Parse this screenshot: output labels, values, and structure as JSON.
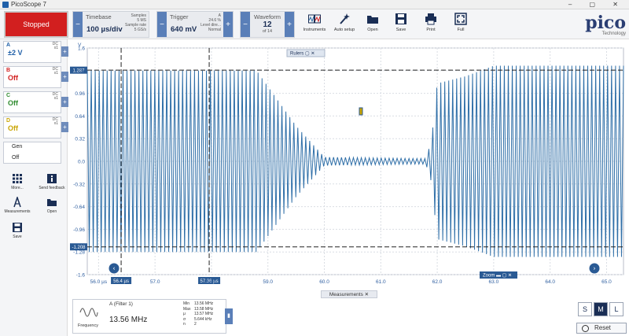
{
  "window": {
    "title": "PicoScope 7"
  },
  "toolbar": {
    "stop_label": "Stopped",
    "timebase": {
      "title": "Timebase",
      "value": "100 µs/div",
      "samples_label": "Samples",
      "samples_value": "5 MS",
      "rate_label": "Sample rate",
      "rate_value": "5 GS/s"
    },
    "trigger": {
      "title": "Trigger",
      "value": "640 mV",
      "channel": "A",
      "percent": "24.6 %",
      "level_label": "Level dire...",
      "mode": "Normal"
    },
    "waveform": {
      "title": "Waveform",
      "value": "12",
      "of_label": "of 14"
    },
    "tools": [
      {
        "label": "Instruments",
        "icon": "instruments-icon"
      },
      {
        "label": "Auto setup",
        "icon": "wand-icon"
      },
      {
        "label": "Open",
        "icon": "folder-icon"
      },
      {
        "label": "Save",
        "icon": "save-icon"
      },
      {
        "label": "Print",
        "icon": "printer-icon"
      },
      {
        "label": "Full",
        "icon": "fullscreen-icon"
      }
    ],
    "logo": {
      "word": "pico",
      "sub": "Technology"
    }
  },
  "sidebar": {
    "channels": [
      {
        "name": "A",
        "coupling": "DC",
        "probe": "x1",
        "value": "±2 V",
        "color": "#1f5fa8"
      },
      {
        "name": "B",
        "coupling": "DC",
        "probe": "x1",
        "value": "Off",
        "color": "#d21f1f"
      },
      {
        "name": "C",
        "coupling": "DC",
        "probe": "x1",
        "value": "Off",
        "color": "#2e8b2e"
      },
      {
        "name": "D",
        "coupling": "DC",
        "probe": "x1",
        "value": "Off",
        "color": "#c9a400"
      }
    ],
    "gen": {
      "label": "Gen",
      "value": "Off"
    },
    "tools": [
      {
        "label": "More...",
        "icon": "grid-icon"
      },
      {
        "label": "Send feedback",
        "icon": "info-icon"
      },
      {
        "label": "Measurements",
        "icon": "measure-icon"
      },
      {
        "label": "Open",
        "icon": "folder-icon"
      },
      {
        "label": "Save",
        "icon": "save-icon"
      }
    ]
  },
  "plot": {
    "y_unit": "V",
    "y_ticks": [
      "1.6",
      "1.28",
      "0.96",
      "0.64",
      "0.32",
      "0.0",
      "-0.32",
      "-0.64",
      "-0.96",
      "-1.28",
      "-1.6"
    ],
    "x_ticks": [
      "56.0 µs",
      "57.0",
      "58.0",
      "59.0",
      "60.0",
      "61.0",
      "62.0",
      "63.0",
      "64.0",
      "65.0"
    ],
    "rulers_label": "Rulers",
    "zoom_label": "Zoom",
    "ruler_x1": "56.4 µs",
    "ruler_x2": "57.96 µs",
    "ruler_y1": "1.287",
    "ruler_y2": "-1.208",
    "trace_color": "#2f6fa8",
    "ruler_x1_value": 56.4,
    "ruler_x2_value": 57.96,
    "ruler_y1_value": 1.287,
    "ruler_y2_value": -1.208
  },
  "chart_data": {
    "type": "line",
    "xlabel": "",
    "ylabel": "V",
    "xlim": [
      55.8,
      65.3
    ],
    "ylim": [
      -1.6,
      1.6
    ],
    "grid": true,
    "series": [
      {
        "values": [
          [
            55.8,
            1.28
          ],
          [
            58.8,
            1.28
          ],
          [
            59.5,
            0.5
          ],
          [
            60.0,
            0.06
          ],
          [
            61.5,
            0.04
          ],
          [
            61.8,
            0.04
          ],
          [
            61.9,
            0.3
          ],
          [
            62.0,
            1.1
          ],
          [
            62.5,
            1.2
          ],
          [
            63.0,
            1.35
          ],
          [
            65.3,
            1.35
          ]
        ]
      }
    ]
  },
  "measurements": {
    "tab_label": "Measurements",
    "channel_label": "A (Filter 1)",
    "name": "Frequency",
    "value": "13.56 MHz",
    "stats": [
      {
        "k": "Min",
        "v": "13.56 MHz"
      },
      {
        "k": "Max",
        "v": "13.58 MHz"
      },
      {
        "k": "μ",
        "v": "13.57 MHz"
      },
      {
        "k": "σ",
        "v": "5.644 kHz"
      },
      {
        "k": "n",
        "v": "2"
      }
    ]
  },
  "bottom": {
    "size_buttons": [
      "S",
      "M",
      "L"
    ],
    "active_size": "M",
    "reset_label": "Reset"
  }
}
